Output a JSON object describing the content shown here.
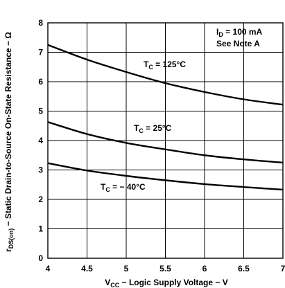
{
  "chart_data": {
    "type": "line",
    "xlabel": {
      "main": "V",
      "sub": "CC",
      "rest": " − Logic Supply Voltage − V"
    },
    "ylabel": {
      "main": "r",
      "sub": "DS(on)",
      "rest": " − Static Drain-to-Source On-State Resistance − Ω"
    },
    "xlim": [
      4,
      7
    ],
    "ylim": [
      0,
      8
    ],
    "x_ticks": [
      4,
      4.5,
      5,
      5.5,
      6,
      6.5,
      7
    ],
    "x_tick_labels": [
      "4",
      "4.5",
      "5",
      "5.5",
      "6",
      "6.5",
      "7"
    ],
    "y_ticks": [
      0,
      1,
      2,
      3,
      4,
      5,
      6,
      7,
      8
    ],
    "y_tick_labels": [
      "0",
      "1",
      "2",
      "3",
      "4",
      "5",
      "6",
      "7",
      "8"
    ],
    "grid": true,
    "condition": {
      "line1_main": "I",
      "line1_sub": "D",
      "line1_rest": " = 100 mA",
      "line2": "See Note A"
    },
    "series": [
      {
        "name": {
          "main": "T",
          "sub": "C",
          "rest": " = 125°C"
        },
        "x": [
          4,
          4.5,
          5,
          5.5,
          6,
          6.5,
          7
        ],
        "y": [
          7.25,
          6.75,
          6.33,
          5.95,
          5.65,
          5.4,
          5.22
        ]
      },
      {
        "name": {
          "main": "T",
          "sub": "C",
          "rest": " = 25°C"
        },
        "x": [
          4,
          4.5,
          5,
          5.5,
          6,
          6.5,
          7
        ],
        "y": [
          4.63,
          4.22,
          3.92,
          3.7,
          3.5,
          3.36,
          3.25
        ]
      },
      {
        "name": {
          "main": "T",
          "sub": "C",
          "rest": " = − 40°C"
        },
        "x": [
          4,
          4.5,
          5,
          5.5,
          6,
          6.5,
          7
        ],
        "y": [
          3.23,
          2.98,
          2.8,
          2.65,
          2.52,
          2.42,
          2.33
        ]
      }
    ]
  }
}
